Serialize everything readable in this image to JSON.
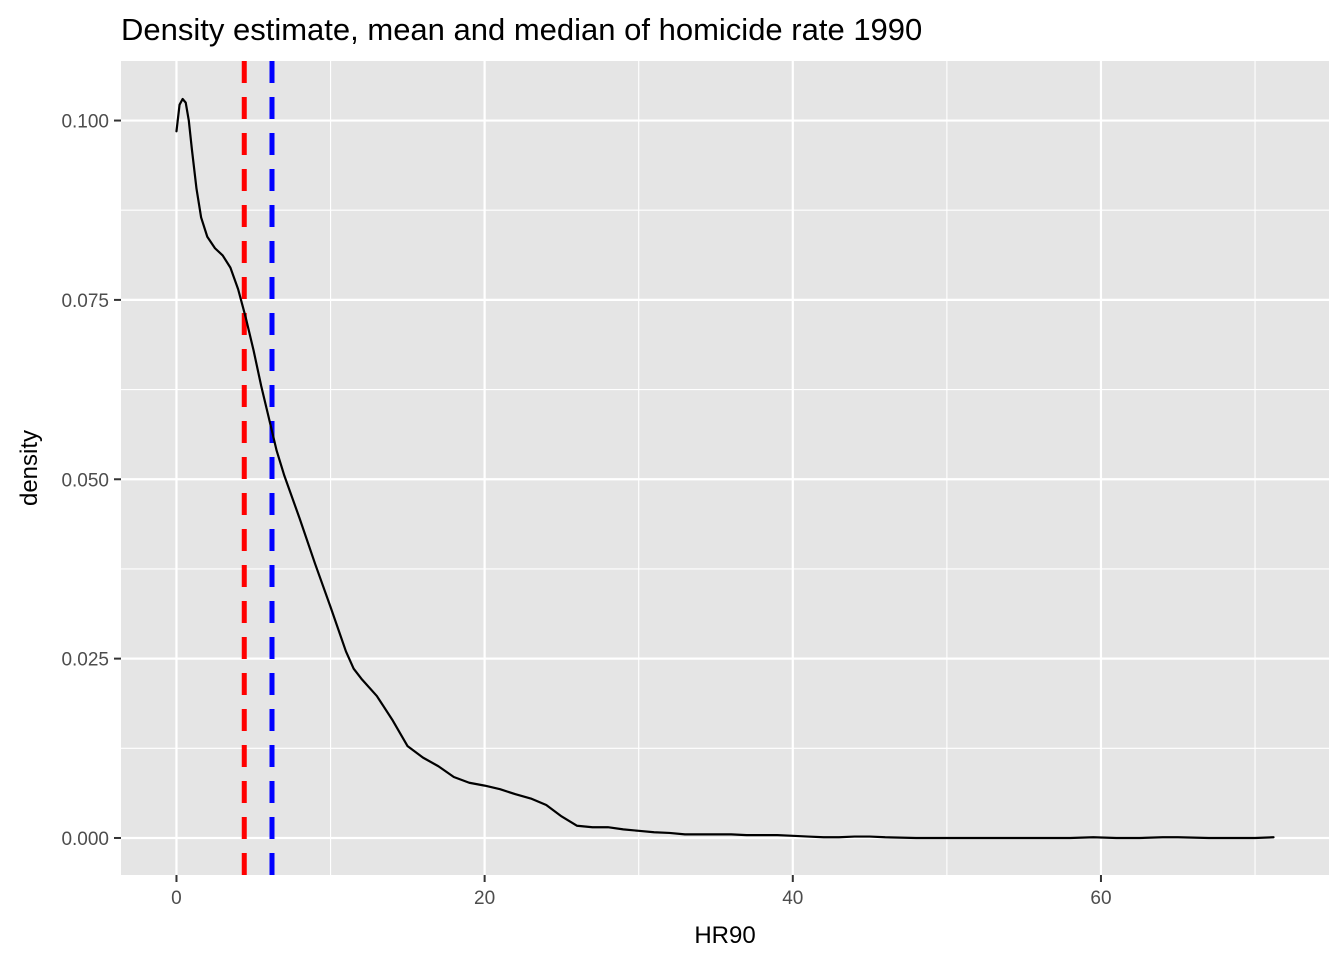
{
  "chart_data": {
    "type": "line",
    "title": "Density estimate, mean and median of homicide rate 1990",
    "xlabel": "HR90",
    "ylabel": "density",
    "xlim": [
      -3.6,
      74.8
    ],
    "ylim": [
      -0.00516,
      0.1083
    ],
    "x_ticks": [
      0,
      20,
      40,
      60
    ],
    "x_tick_labels": [
      "0",
      "20",
      "40",
      "60"
    ],
    "y_ticks": [
      0,
      0.025,
      0.05,
      0.075,
      0.1
    ],
    "y_tick_labels": [
      "0.000",
      "0.025",
      "0.050",
      "0.075",
      "0.100"
    ],
    "grid": true,
    "legend": "none",
    "series": [
      {
        "color": "#000000",
        "x": [
          0,
          0.2,
          0.4,
          0.6,
          0.8,
          1.0,
          1.3,
          1.6,
          2.0,
          2.5,
          3.0,
          3.5,
          4.0,
          4.5,
          5.0,
          5.5,
          6.0,
          6.5,
          7.0,
          8.0,
          9.0,
          10.0,
          11.0,
          11.5,
          12.0,
          13.0,
          14.0,
          15.0,
          16.0,
          17.0,
          18.0,
          19.0,
          20.0,
          21.0,
          22.0,
          23.0,
          24.0,
          25.0,
          26.0,
          27.0,
          28.0,
          29.0,
          30.0,
          31.0,
          32.0,
          33.0,
          34.0,
          35.0,
          36.0,
          37.0,
          38.0,
          39.0,
          40.0,
          41.0,
          42.0,
          43.0,
          44.0,
          45.0,
          46.0,
          48.0,
          50.0,
          52.0,
          54.0,
          56.0,
          58.0,
          59.5,
          61.0,
          62.5,
          64.0,
          65.0,
          67.0,
          69.0,
          70.0,
          71.2
        ],
        "values": [
          0.0985,
          0.1022,
          0.103,
          0.1025,
          0.1,
          0.096,
          0.0905,
          0.0865,
          0.0838,
          0.0822,
          0.0812,
          0.0795,
          0.0765,
          0.0725,
          0.068,
          0.063,
          0.0585,
          0.054,
          0.0505,
          0.0445,
          0.0382,
          0.0322,
          0.026,
          0.0236,
          0.0222,
          0.0198,
          0.0165,
          0.0128,
          0.0112,
          0.01,
          0.0085,
          0.0077,
          0.0073,
          0.0068,
          0.0061,
          0.0055,
          0.0046,
          0.003,
          0.0017,
          0.0015,
          0.0015,
          0.0012,
          0.001,
          0.0008,
          0.0007,
          0.0005,
          0.0005,
          0.0005,
          0.0005,
          0.0004,
          0.0004,
          0.0004,
          0.0003,
          0.0002,
          0.0001,
          0.0001,
          0.0002,
          0.0002,
          0.0001,
          0.0,
          0.0,
          0.0,
          0.0,
          0.0,
          0.0,
          0.0001,
          0.0,
          0.0,
          0.0001,
          0.0001,
          0.0,
          0.0,
          0.0,
          0.0001
        ]
      }
    ],
    "vlines": [
      {
        "x": 4.4,
        "color": "#ff0000",
        "style": "dashed"
      },
      {
        "x": 6.2,
        "color": "#0000ff",
        "style": "dashed"
      }
    ],
    "panel_color": "#e5e5e5",
    "grid_color": "#ffffff"
  }
}
